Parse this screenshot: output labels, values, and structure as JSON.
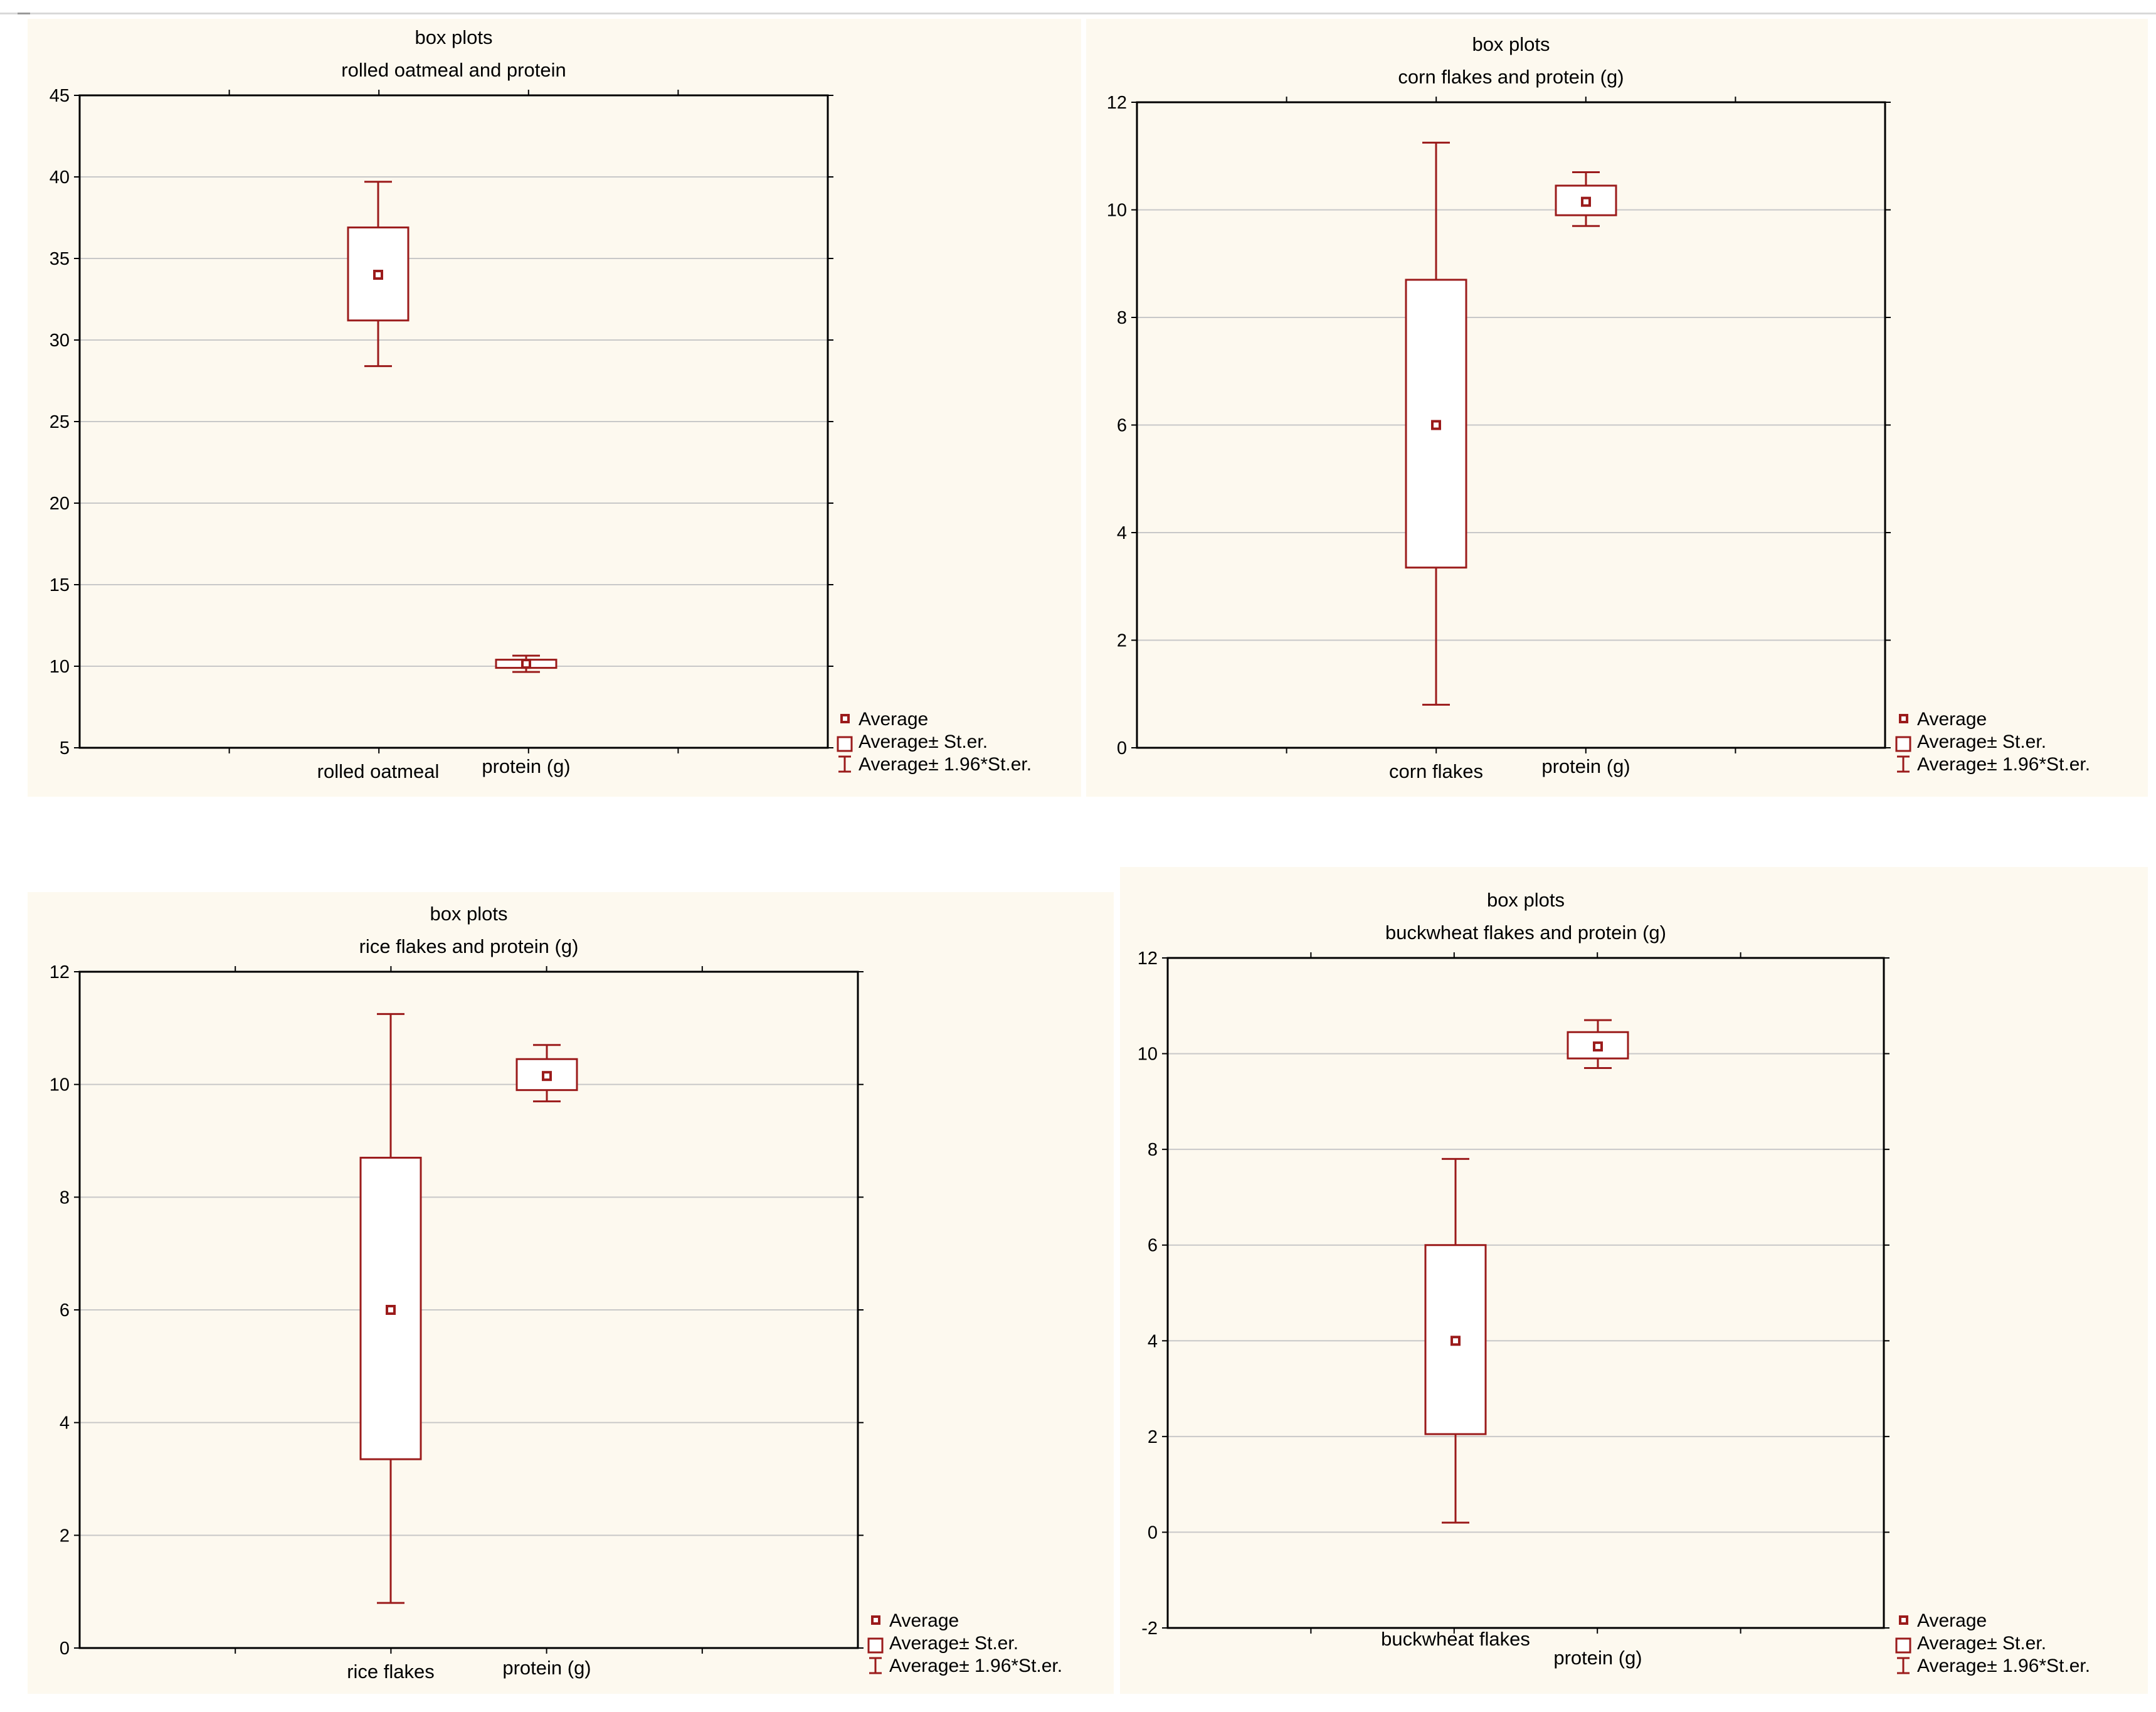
{
  "legend": {
    "average": "Average",
    "average_se": "Average± St.er.",
    "average_ci": "Average± 1.96*St.er."
  },
  "colors": {
    "series": "#9b1b1b",
    "grid": "#c8c8c8",
    "panel_bg": "#fdf9ef"
  },
  "chart_data": [
    {
      "type": "box",
      "title": "box plots",
      "subtitle": "rolled oatmeal and protein",
      "ylim": [
        5,
        45
      ],
      "yticks": [
        5,
        10,
        15,
        20,
        25,
        30,
        35,
        40,
        45
      ],
      "categories": [
        "rolled oatmeal",
        "protein (g)"
      ],
      "series": [
        {
          "category": "rolled oatmeal",
          "mean": 34.0,
          "se_low": 31.2,
          "se_high": 36.9,
          "ci_low": 28.4,
          "ci_high": 39.7
        },
        {
          "category": "protein (g)",
          "mean": 10.15,
          "se_low": 9.9,
          "se_high": 10.4,
          "ci_low": 9.65,
          "ci_high": 10.65
        }
      ],
      "grid": true,
      "legend_position": "bottom-right"
    },
    {
      "type": "box",
      "title": "box plots",
      "subtitle": "corn flakes  and  protein (g)",
      "ylim": [
        0,
        12
      ],
      "yticks": [
        0,
        2,
        4,
        6,
        8,
        10,
        12
      ],
      "categories": [
        "corn flakes",
        "protein (g)"
      ],
      "series": [
        {
          "category": "corn flakes",
          "mean": 6.0,
          "se_low": 3.35,
          "se_high": 8.7,
          "ci_low": 0.8,
          "ci_high": 11.25
        },
        {
          "category": "protein (g)",
          "mean": 10.15,
          "se_low": 9.9,
          "se_high": 10.45,
          "ci_low": 9.7,
          "ci_high": 10.7
        }
      ],
      "grid": true,
      "legend_position": "bottom-right"
    },
    {
      "type": "box",
      "title": "box plots",
      "subtitle": "rice flakes  and protein (g)",
      "ylim": [
        0,
        12
      ],
      "yticks": [
        0,
        2,
        4,
        6,
        8,
        10,
        12
      ],
      "categories": [
        "rice flakes",
        "protein (g)"
      ],
      "series": [
        {
          "category": "rice flakes",
          "mean": 6.0,
          "se_low": 3.35,
          "se_high": 8.7,
          "ci_low": 0.8,
          "ci_high": 11.25
        },
        {
          "category": "protein (g)",
          "mean": 10.15,
          "se_low": 9.9,
          "se_high": 10.45,
          "ci_low": 9.7,
          "ci_high": 10.7
        }
      ],
      "grid": true,
      "legend_position": "bottom-right"
    },
    {
      "type": "box",
      "title": "box plots",
      "subtitle": "buckwheat flakes  and protein (g)",
      "ylim": [
        -2,
        12
      ],
      "yticks": [
        -2,
        0,
        2,
        4,
        6,
        8,
        10,
        12
      ],
      "categories": [
        "buckwheat flakes",
        "protein (g)"
      ],
      "series": [
        {
          "category": "buckwheat flakes",
          "mean": 4.0,
          "se_low": 2.05,
          "se_high": 6.0,
          "ci_low": 0.2,
          "ci_high": 7.8
        },
        {
          "category": "protein (g)",
          "mean": 10.15,
          "se_low": 9.9,
          "se_high": 10.45,
          "ci_low": 9.7,
          "ci_high": 10.7
        }
      ],
      "grid": true,
      "legend_position": "bottom-right"
    }
  ]
}
